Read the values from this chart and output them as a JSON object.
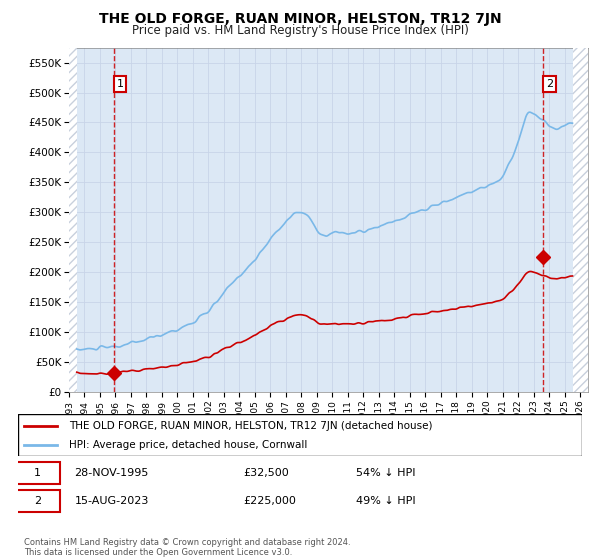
{
  "title": "THE OLD FORGE, RUAN MINOR, HELSTON, TR12 7JN",
  "subtitle": "Price paid vs. HM Land Registry's House Price Index (HPI)",
  "legend_line1": "THE OLD FORGE, RUAN MINOR, HELSTON, TR12 7JN (detached house)",
  "legend_line2": "HPI: Average price, detached house, Cornwall",
  "annotation1_label": "1",
  "annotation1_date": "28-NOV-1995",
  "annotation1_price": "£32,500",
  "annotation1_hpi": "54% ↓ HPI",
  "annotation2_label": "2",
  "annotation2_date": "15-AUG-2023",
  "annotation2_price": "£225,000",
  "annotation2_hpi": "49% ↓ HPI",
  "footer": "Contains HM Land Registry data © Crown copyright and database right 2024.\nThis data is licensed under the Open Government Licence v3.0.",
  "hpi_color": "#7ab8e8",
  "price_color": "#cc0000",
  "annotation_color": "#cc0000",
  "grid_color": "#c8d4e8",
  "plot_bg_color": "#dce8f5",
  "hatch_color": "#c8d0dc",
  "ylim": [
    0,
    575000
  ],
  "yticks": [
    0,
    50000,
    100000,
    150000,
    200000,
    250000,
    300000,
    350000,
    400000,
    450000,
    500000,
    550000
  ],
  "xlim_start": 1993.0,
  "xlim_end": 2026.5,
  "data_start": 1993.5,
  "data_end": 2025.5,
  "sale1_x": 1995.92,
  "sale1_y": 32500,
  "sale2_x": 2023.62,
  "sale2_y": 225000
}
